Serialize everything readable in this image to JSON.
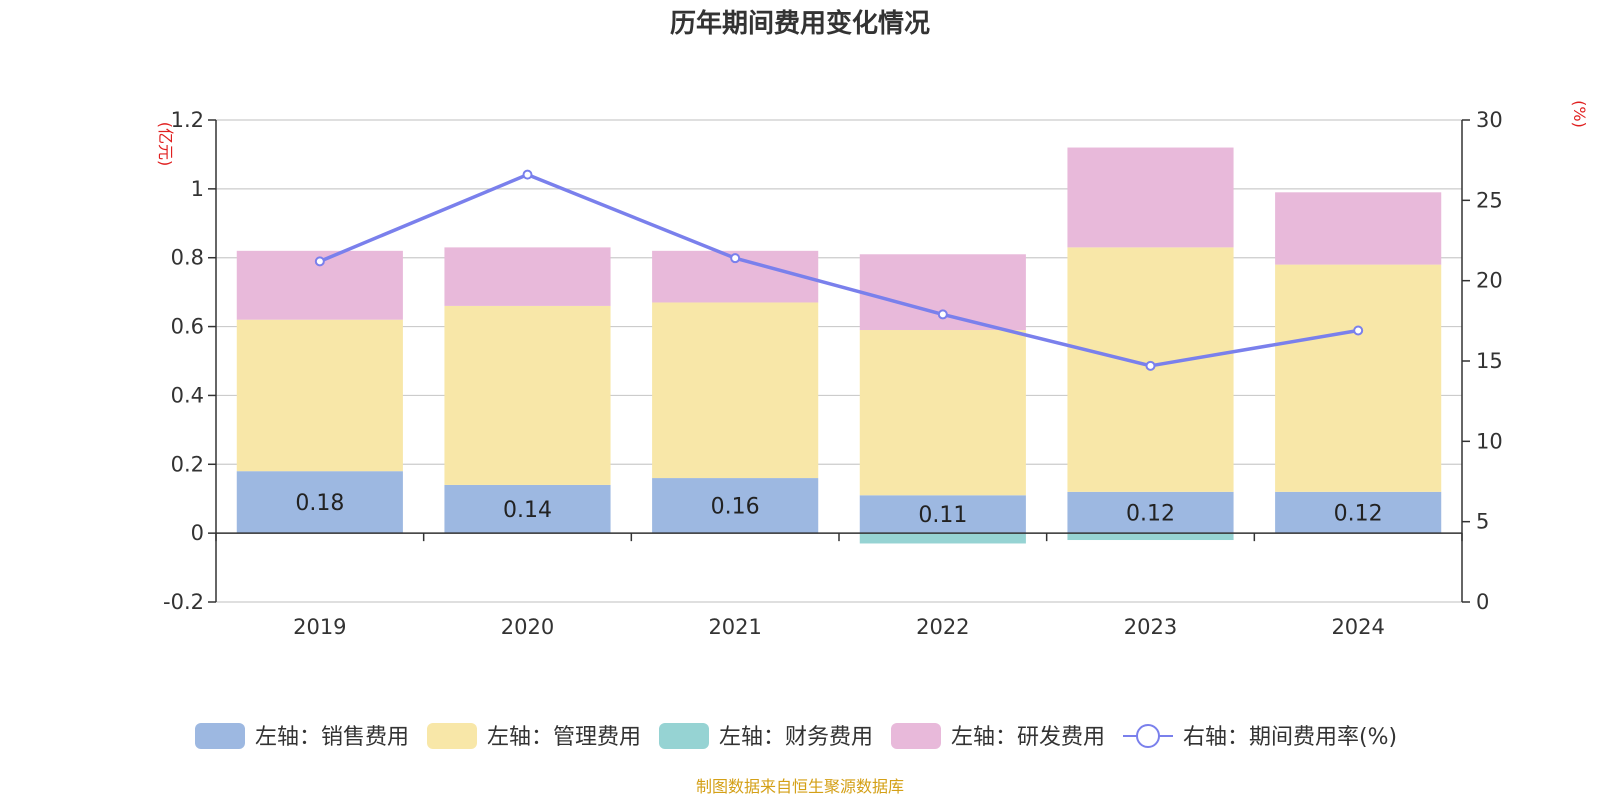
{
  "colors": {
    "sales": "#9db8e1",
    "admin": "#f8e7a8",
    "finance": "#96d3d3",
    "rnd": "#e8b9da",
    "rate": "#7a80ec",
    "unit": "#e02020",
    "source": "#d4a017"
  },
  "chart_data": {
    "type": "bar",
    "stacked": true,
    "title": "历年期间费用变化情况",
    "categories": [
      "2019",
      "2020",
      "2021",
      "2022",
      "2023",
      "2024"
    ],
    "y_left": {
      "unit": "(亿元)",
      "min": -0.2,
      "max": 1.2,
      "ticks": [
        "-0.2",
        "0",
        "0.2",
        "0.4",
        "0.6",
        "0.8",
        "1",
        "1.2"
      ]
    },
    "y_right": {
      "unit": "(%)",
      "min": 0,
      "max": 30,
      "ticks": [
        "0",
        "5",
        "10",
        "15",
        "20",
        "25",
        "30"
      ]
    },
    "series": [
      {
        "name": "左轴：销售费用",
        "key": "sales",
        "axis": "left",
        "values": [
          0.18,
          0.14,
          0.16,
          0.11,
          0.12,
          0.12
        ],
        "labels": [
          "0.18",
          "0.14",
          "0.16",
          "0.11",
          "0.12",
          "0.12"
        ]
      },
      {
        "name": "左轴：管理费用",
        "key": "admin",
        "axis": "left",
        "values": [
          0.44,
          0.52,
          0.51,
          0.48,
          0.71,
          0.66
        ]
      },
      {
        "name": "左轴：财务费用",
        "key": "finance",
        "axis": "left",
        "values": [
          0.0,
          0.0,
          0.0,
          -0.03,
          -0.02,
          0.0
        ]
      },
      {
        "name": "左轴：研发费用",
        "key": "rnd",
        "axis": "left",
        "values": [
          0.2,
          0.17,
          0.15,
          0.22,
          0.29,
          0.21
        ]
      },
      {
        "name": "右轴：期间费用率(%)",
        "key": "rate",
        "axis": "right",
        "type": "line",
        "values": [
          21.2,
          26.6,
          21.4,
          17.9,
          14.7,
          16.9
        ]
      }
    ],
    "grid": true,
    "legend": "bottom"
  },
  "source": "制图数据来自恒生聚源数据库"
}
